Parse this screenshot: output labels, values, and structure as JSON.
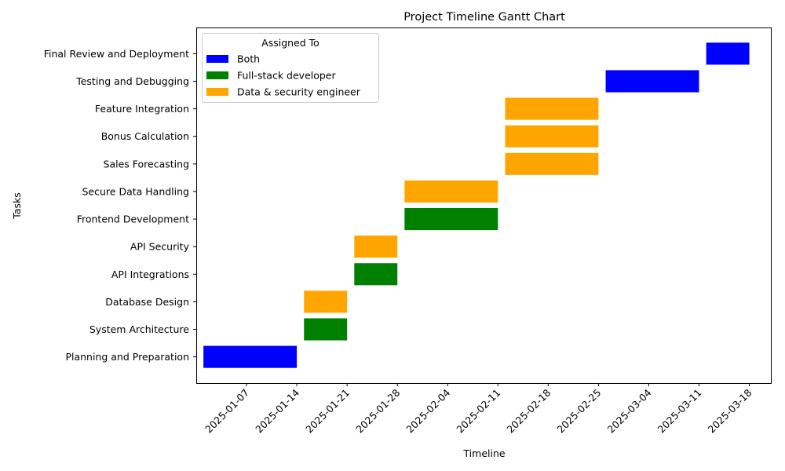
{
  "chart_data": {
    "type": "gantt",
    "title": "Project Timeline Gantt Chart",
    "xlabel": "Timeline",
    "ylabel": "Tasks",
    "xlim": [
      "2024-12-31",
      "2025-03-21"
    ],
    "x_ticks": [
      "2025-01-07",
      "2025-01-14",
      "2025-01-21",
      "2025-01-28",
      "2025-02-04",
      "2025-02-11",
      "2025-02-18",
      "2025-02-25",
      "2025-03-04",
      "2025-03-11",
      "2025-03-18"
    ],
    "legend": {
      "title": "Assigned To",
      "position": "top-left",
      "entries": [
        {
          "label": "Both",
          "color": "#0000ff"
        },
        {
          "label": "Full-stack developer",
          "color": "#008000"
        },
        {
          "label": "Data & security engineer",
          "color": "#ffa500"
        }
      ]
    },
    "tasks": [
      {
        "name": "Planning and Preparation",
        "start": "2025-01-01",
        "end": "2025-01-14",
        "assigned": "Both"
      },
      {
        "name": "System Architecture",
        "start": "2025-01-15",
        "end": "2025-01-21",
        "assigned": "Full-stack developer"
      },
      {
        "name": "Database Design",
        "start": "2025-01-15",
        "end": "2025-01-21",
        "assigned": "Data & security engineer"
      },
      {
        "name": "API Integrations",
        "start": "2025-01-22",
        "end": "2025-01-28",
        "assigned": "Full-stack developer"
      },
      {
        "name": "API Security",
        "start": "2025-01-22",
        "end": "2025-01-28",
        "assigned": "Data & security engineer"
      },
      {
        "name": "Frontend Development",
        "start": "2025-01-29",
        "end": "2025-02-11",
        "assigned": "Full-stack developer"
      },
      {
        "name": "Secure Data Handling",
        "start": "2025-01-29",
        "end": "2025-02-11",
        "assigned": "Data & security engineer"
      },
      {
        "name": "Sales Forecasting",
        "start": "2025-02-12",
        "end": "2025-02-25",
        "assigned": "Data & security engineer"
      },
      {
        "name": "Bonus Calculation",
        "start": "2025-02-12",
        "end": "2025-02-25",
        "assigned": "Data & security engineer"
      },
      {
        "name": "Feature Integration",
        "start": "2025-02-12",
        "end": "2025-02-25",
        "assigned": "Data & security engineer"
      },
      {
        "name": "Testing and Debugging",
        "start": "2025-02-26",
        "end": "2025-03-11",
        "assigned": "Both"
      },
      {
        "name": "Final Review and Deployment",
        "start": "2025-03-12",
        "end": "2025-03-18",
        "assigned": "Both"
      }
    ]
  }
}
